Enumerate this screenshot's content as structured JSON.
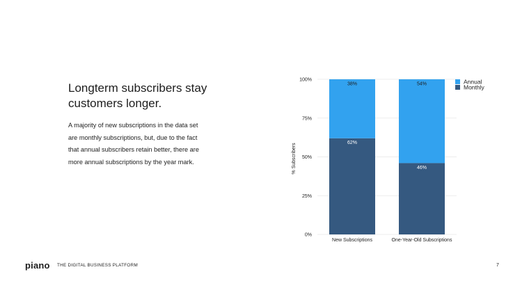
{
  "slide": {
    "headline": "Longterm subscribers stay customers longer.",
    "body": "A majority of new subscriptions in the data set are monthly subscriptions, but, due to the fact that annual subscribers retain better, there are more annual subscriptions by the year mark."
  },
  "footer": {
    "logo": "piano",
    "tagline": "THE DIGITAL BUSINESS PLATFORM",
    "page_number": "7"
  },
  "colors": {
    "annual": "#32a2ef",
    "monthly": "#355980",
    "grid": "#e6e6e6"
  },
  "chart_data": {
    "type": "bar",
    "stacked": true,
    "categories": [
      "New Subscriptions",
      "One-Year-Old Subscriptions"
    ],
    "series": [
      {
        "name": "Monthly",
        "values": [
          62,
          46
        ],
        "labels": [
          "62%",
          "46%"
        ]
      },
      {
        "name": "Annual",
        "values": [
          38,
          54
        ],
        "labels": [
          "38%",
          "54%"
        ]
      }
    ],
    "ylabel": "% Subscribers",
    "ylim": [
      0,
      100
    ],
    "yticks": [
      "0%",
      "25%",
      "50%",
      "75%",
      "100%"
    ],
    "grid": true,
    "legend": {
      "position": "top-right",
      "entries": [
        "Annual",
        "Monthly"
      ]
    }
  }
}
